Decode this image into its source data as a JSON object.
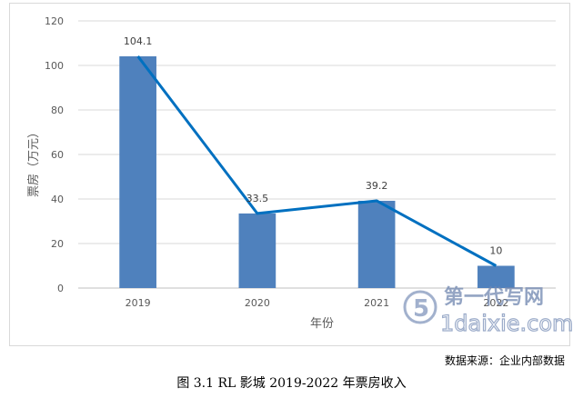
{
  "chart_data": {
    "type": "bar",
    "categories": [
      "2019",
      "2020",
      "2021",
      "2022"
    ],
    "values": [
      104.1,
      33.5,
      39.2,
      10
    ],
    "data_labels": [
      "104.1",
      "33.5",
      "39.2",
      "10"
    ],
    "overlay_line": true,
    "xlabel": "年份",
    "ylabel": "票房（万元）",
    "ylim": [
      0,
      120
    ],
    "yticks": [
      0,
      20,
      40,
      60,
      80,
      100,
      120
    ],
    "grid": true,
    "bar_color": "#4f81bd",
    "line_color": "#0070c0"
  },
  "source_note": "数据来源：企业内部数据",
  "caption": "图 3.1 RL 影城 2019-2022 年票房收入",
  "watermark": {
    "line1": "第一代写网",
    "line2": "1daixie.com"
  }
}
